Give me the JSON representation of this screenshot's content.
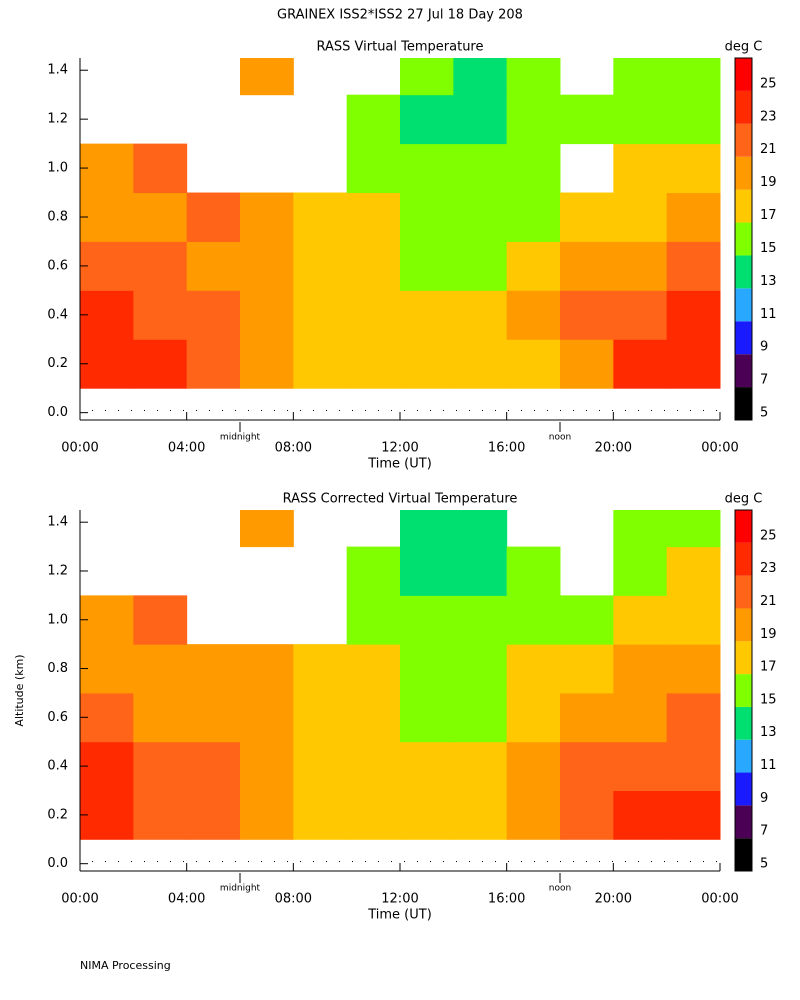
{
  "title": "GRAINEX ISS2*ISS2  27 Jul 18 Day 208",
  "footer": "NIMA Processing",
  "chart_data": [
    {
      "type": "heatmap",
      "title": "RASS Virtual Temperature",
      "xlabel": "Time (UT)",
      "x": [
        1,
        3,
        5,
        7,
        9,
        11,
        13,
        15,
        17,
        19,
        21,
        23
      ],
      "y": [
        0.2,
        0.4,
        0.6,
        0.8,
        1.0,
        1.2,
        1.4
      ],
      "z": [
        [
          24,
          23,
          22,
          20,
          18,
          18,
          18,
          18,
          18,
          20,
          23,
          24
        ],
        [
          23,
          22,
          21,
          20,
          18,
          18,
          18,
          18,
          19,
          21,
          22,
          23
        ],
        [
          21,
          21,
          20,
          20,
          18,
          17,
          16,
          16,
          18,
          19,
          20,
          21
        ],
        [
          20,
          20,
          21,
          20,
          18,
          17,
          16,
          16,
          16,
          18,
          18,
          19
        ],
        [
          19,
          22,
          null,
          null,
          null,
          16,
          15,
          15,
          16,
          null,
          17,
          18
        ],
        [
          null,
          null,
          null,
          null,
          null,
          15,
          14,
          14,
          15,
          16,
          15,
          16
        ],
        [
          null,
          null,
          null,
          19,
          null,
          null,
          15,
          14,
          15,
          null,
          15,
          15
        ]
      ],
      "xlim": [
        0,
        24
      ],
      "xticks": [
        {
          "value": 0,
          "label": "00:00"
        },
        {
          "value": 4,
          "label": "04:00"
        },
        {
          "value": 8,
          "label": "08:00"
        },
        {
          "value": 12,
          "label": "12:00"
        },
        {
          "value": 16,
          "label": "16:00"
        },
        {
          "value": 20,
          "label": "20:00"
        },
        {
          "value": 24,
          "label": "00:00"
        }
      ],
      "ylim": [
        -0.03,
        1.45
      ],
      "yticks": [
        {
          "value": 0,
          "label": "0.0"
        },
        0.2,
        0.4,
        0.6,
        0.8,
        {
          "value": 1,
          "label": "1.0"
        },
        1.2,
        1.4
      ],
      "annotations": [
        {
          "x": 6,
          "text": "midnight"
        },
        {
          "x": 18,
          "text": "noon"
        }
      ],
      "colorbar": {
        "title": "deg C",
        "levels": [
          5,
          7,
          9,
          11,
          13,
          15,
          17,
          19,
          21,
          23,
          25,
          27
        ],
        "colors": [
          "#000000",
          "#4b0055",
          "#1a1aff",
          "#29a8ff",
          "#00e070",
          "#80ff00",
          "#ffc800",
          "#ff9a00",
          "#ff6418",
          "#ff2a00",
          "#ff0000"
        ],
        "ticks": [
          5,
          7,
          9,
          11,
          13,
          15,
          17,
          19,
          21,
          23,
          25
        ]
      }
    },
    {
      "type": "heatmap",
      "title": "RASS Corrected Virtual Temperature",
      "xlabel": "Time (UT)",
      "ylabel": "Altitude (km)",
      "x": [
        1,
        3,
        5,
        7,
        9,
        11,
        13,
        15,
        17,
        19,
        21,
        23
      ],
      "y": [
        0.2,
        0.4,
        0.6,
        0.8,
        1.0,
        1.2,
        1.4
      ],
      "z": [
        [
          24,
          22,
          21,
          20,
          18,
          17,
          17,
          17,
          19,
          22,
          23,
          23
        ],
        [
          23,
          22,
          21,
          20,
          18,
          17,
          17,
          17,
          19,
          21,
          22,
          22
        ],
        [
          21,
          20,
          20,
          19,
          18,
          17,
          16,
          16,
          18,
          19,
          20,
          21
        ],
        [
          19,
          20,
          20,
          19,
          18,
          17,
          16,
          16,
          17,
          18,
          19,
          19
        ],
        [
          19,
          21,
          null,
          null,
          null,
          16,
          15,
          15,
          16,
          16,
          17,
          18
        ],
        [
          null,
          null,
          null,
          null,
          null,
          15,
          14,
          14,
          15,
          null,
          16,
          17
        ],
        [
          null,
          null,
          null,
          20,
          null,
          null,
          14,
          14,
          null,
          null,
          15,
          15
        ]
      ],
      "xlim": [
        0,
        24
      ],
      "xticks": [
        {
          "value": 0,
          "label": "00:00"
        },
        {
          "value": 4,
          "label": "04:00"
        },
        {
          "value": 8,
          "label": "08:00"
        },
        {
          "value": 12,
          "label": "12:00"
        },
        {
          "value": 16,
          "label": "16:00"
        },
        {
          "value": 20,
          "label": "20:00"
        },
        {
          "value": 24,
          "label": "00:00"
        }
      ],
      "ylim": [
        -0.03,
        1.45
      ],
      "yticks": [
        {
          "value": 0,
          "label": "0.0"
        },
        0.2,
        0.4,
        0.6,
        0.8,
        {
          "value": 1,
          "label": "1.0"
        },
        1.2,
        1.4
      ],
      "annotations": [
        {
          "x": 6,
          "text": "midnight"
        },
        {
          "x": 18,
          "text": "noon"
        }
      ],
      "colorbar": {
        "title": "deg C",
        "levels": [
          5,
          7,
          9,
          11,
          13,
          15,
          17,
          19,
          21,
          23,
          25,
          27
        ],
        "colors": [
          "#000000",
          "#4b0055",
          "#1a1aff",
          "#29a8ff",
          "#00e070",
          "#80ff00",
          "#ffc800",
          "#ff9a00",
          "#ff6418",
          "#ff2a00",
          "#ff0000"
        ],
        "ticks": [
          5,
          7,
          9,
          11,
          13,
          15,
          17,
          19,
          21,
          23,
          25
        ]
      }
    }
  ]
}
